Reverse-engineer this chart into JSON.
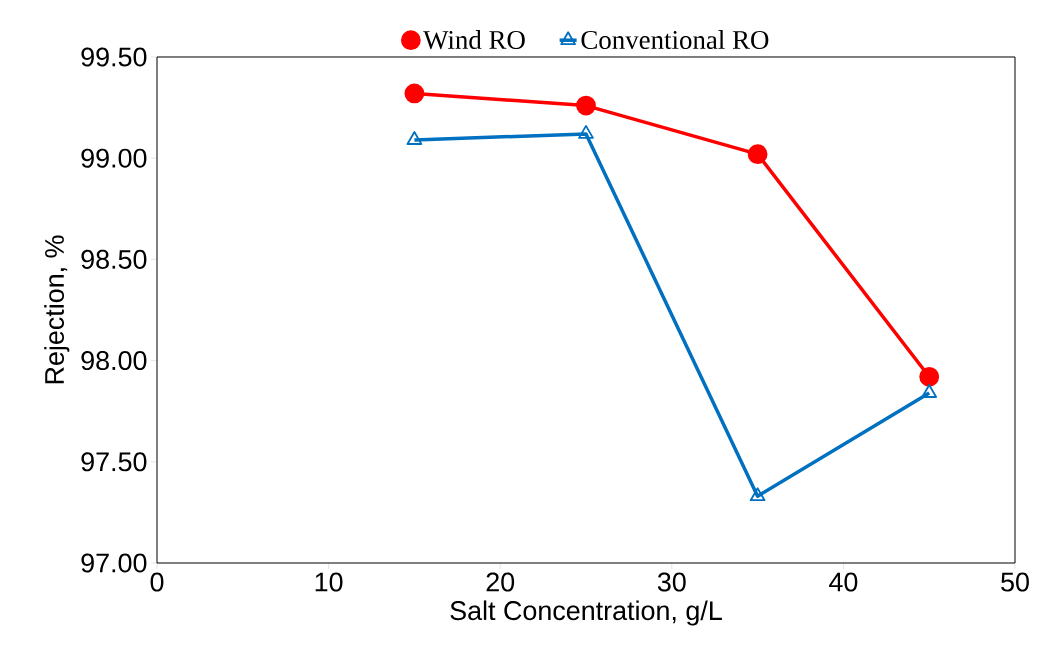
{
  "chart_data": {
    "type": "line",
    "xlabel": "Salt Concentration, g/L",
    "ylabel": "Rejection, %",
    "x": [
      15,
      25,
      35,
      45
    ],
    "series": [
      {
        "name": "Wind RO",
        "color": "#ff0000",
        "marker": "circle",
        "values": [
          99.32,
          99.26,
          99.02,
          97.92
        ]
      },
      {
        "name": "Conventional RO",
        "color": "#0070c0",
        "marker": "triangle",
        "values": [
          99.09,
          99.12,
          97.33,
          97.84
        ]
      }
    ],
    "xlim": [
      0,
      50
    ],
    "xticks": [
      0,
      10,
      20,
      30,
      40,
      50
    ],
    "ylim": [
      97,
      99.5
    ],
    "yticks": [
      {
        "value": 97,
        "label": "97.00"
      },
      {
        "value": 97.5,
        "label": "97.50"
      },
      {
        "value": 98,
        "label": "98.00"
      },
      {
        "value": 98.5,
        "label": "98.50"
      },
      {
        "value": 99,
        "label": "99.00"
      },
      {
        "value": 99.5,
        "label": "99.50"
      }
    ],
    "grid": false,
    "legend": "top",
    "line_style": "solid"
  }
}
